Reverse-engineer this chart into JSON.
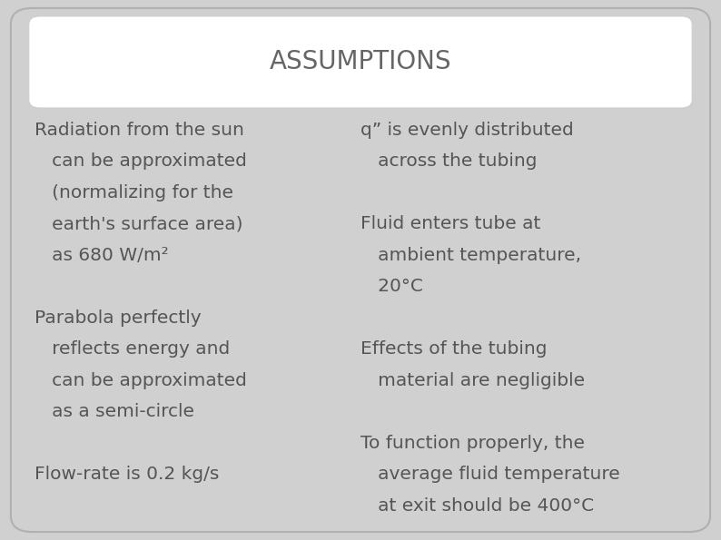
{
  "title": "ASSUMPTIONS",
  "bg_color": "#d0d0d0",
  "title_box_color": "#ffffff",
  "title_color": "#666666",
  "text_color": "#555555",
  "left_col_lines": [
    [
      "Radiation from the sun",
      false
    ],
    [
      "   can be approximated",
      false
    ],
    [
      "   (normalizing for the",
      false
    ],
    [
      "   earth's surface area)",
      false
    ],
    [
      "   as 680 W/m²",
      false
    ],
    [
      "",
      false
    ],
    [
      "Parabola perfectly",
      false
    ],
    [
      "   reflects energy and",
      false
    ],
    [
      "   can be approximated",
      false
    ],
    [
      "   as a semi-circle",
      false
    ],
    [
      "",
      false
    ],
    [
      "Flow-rate is 0.2 kg/s",
      false
    ]
  ],
  "right_col_lines": [
    [
      "q” is evenly distributed",
      false
    ],
    [
      "   across the tubing",
      false
    ],
    [
      "",
      false
    ],
    [
      "Fluid enters tube at",
      false
    ],
    [
      "   ambient temperature,",
      false
    ],
    [
      "   20°C",
      false
    ],
    [
      "",
      false
    ],
    [
      "Effects of the tubing",
      false
    ],
    [
      "   material are negligible",
      false
    ],
    [
      "",
      false
    ],
    [
      "To function properly, the",
      false
    ],
    [
      "   average fluid temperature",
      false
    ],
    [
      "   at exit should be 400°C",
      false
    ]
  ],
  "figsize": [
    7.94,
    5.95
  ],
  "dpi": 100
}
